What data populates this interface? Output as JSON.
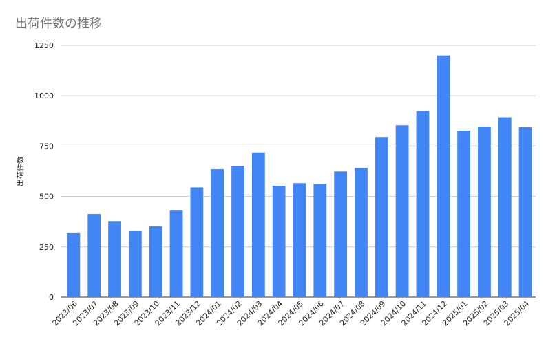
{
  "chart_data": {
    "type": "bar",
    "title": "出荷件数の推移",
    "xlabel": "",
    "ylabel": "出荷件数",
    "ylim": [
      0,
      1250
    ],
    "yticks": [
      0,
      250,
      500,
      750,
      1000,
      1250
    ],
    "grid": true,
    "legend": "none",
    "bar_color": "#4285F4",
    "categories": [
      "2023/06",
      "2023/07",
      "2023/08",
      "2023/09",
      "2023/10",
      "2023/11",
      "2023/12",
      "2024/01",
      "2024/02",
      "2024/03",
      "2024/04",
      "2024/05",
      "2024/06",
      "2024/07",
      "2024/08",
      "2024/09",
      "2024/10",
      "2024/11",
      "2024/12",
      "2025/01",
      "2025/02",
      "2025/03",
      "2025/04"
    ],
    "series": [
      {
        "values": [
          318,
          413,
          375,
          328,
          352,
          430,
          545,
          635,
          652,
          718,
          553,
          566,
          563,
          624,
          641,
          795,
          853,
          924,
          1200,
          826,
          847,
          893,
          844
        ]
      }
    ]
  }
}
